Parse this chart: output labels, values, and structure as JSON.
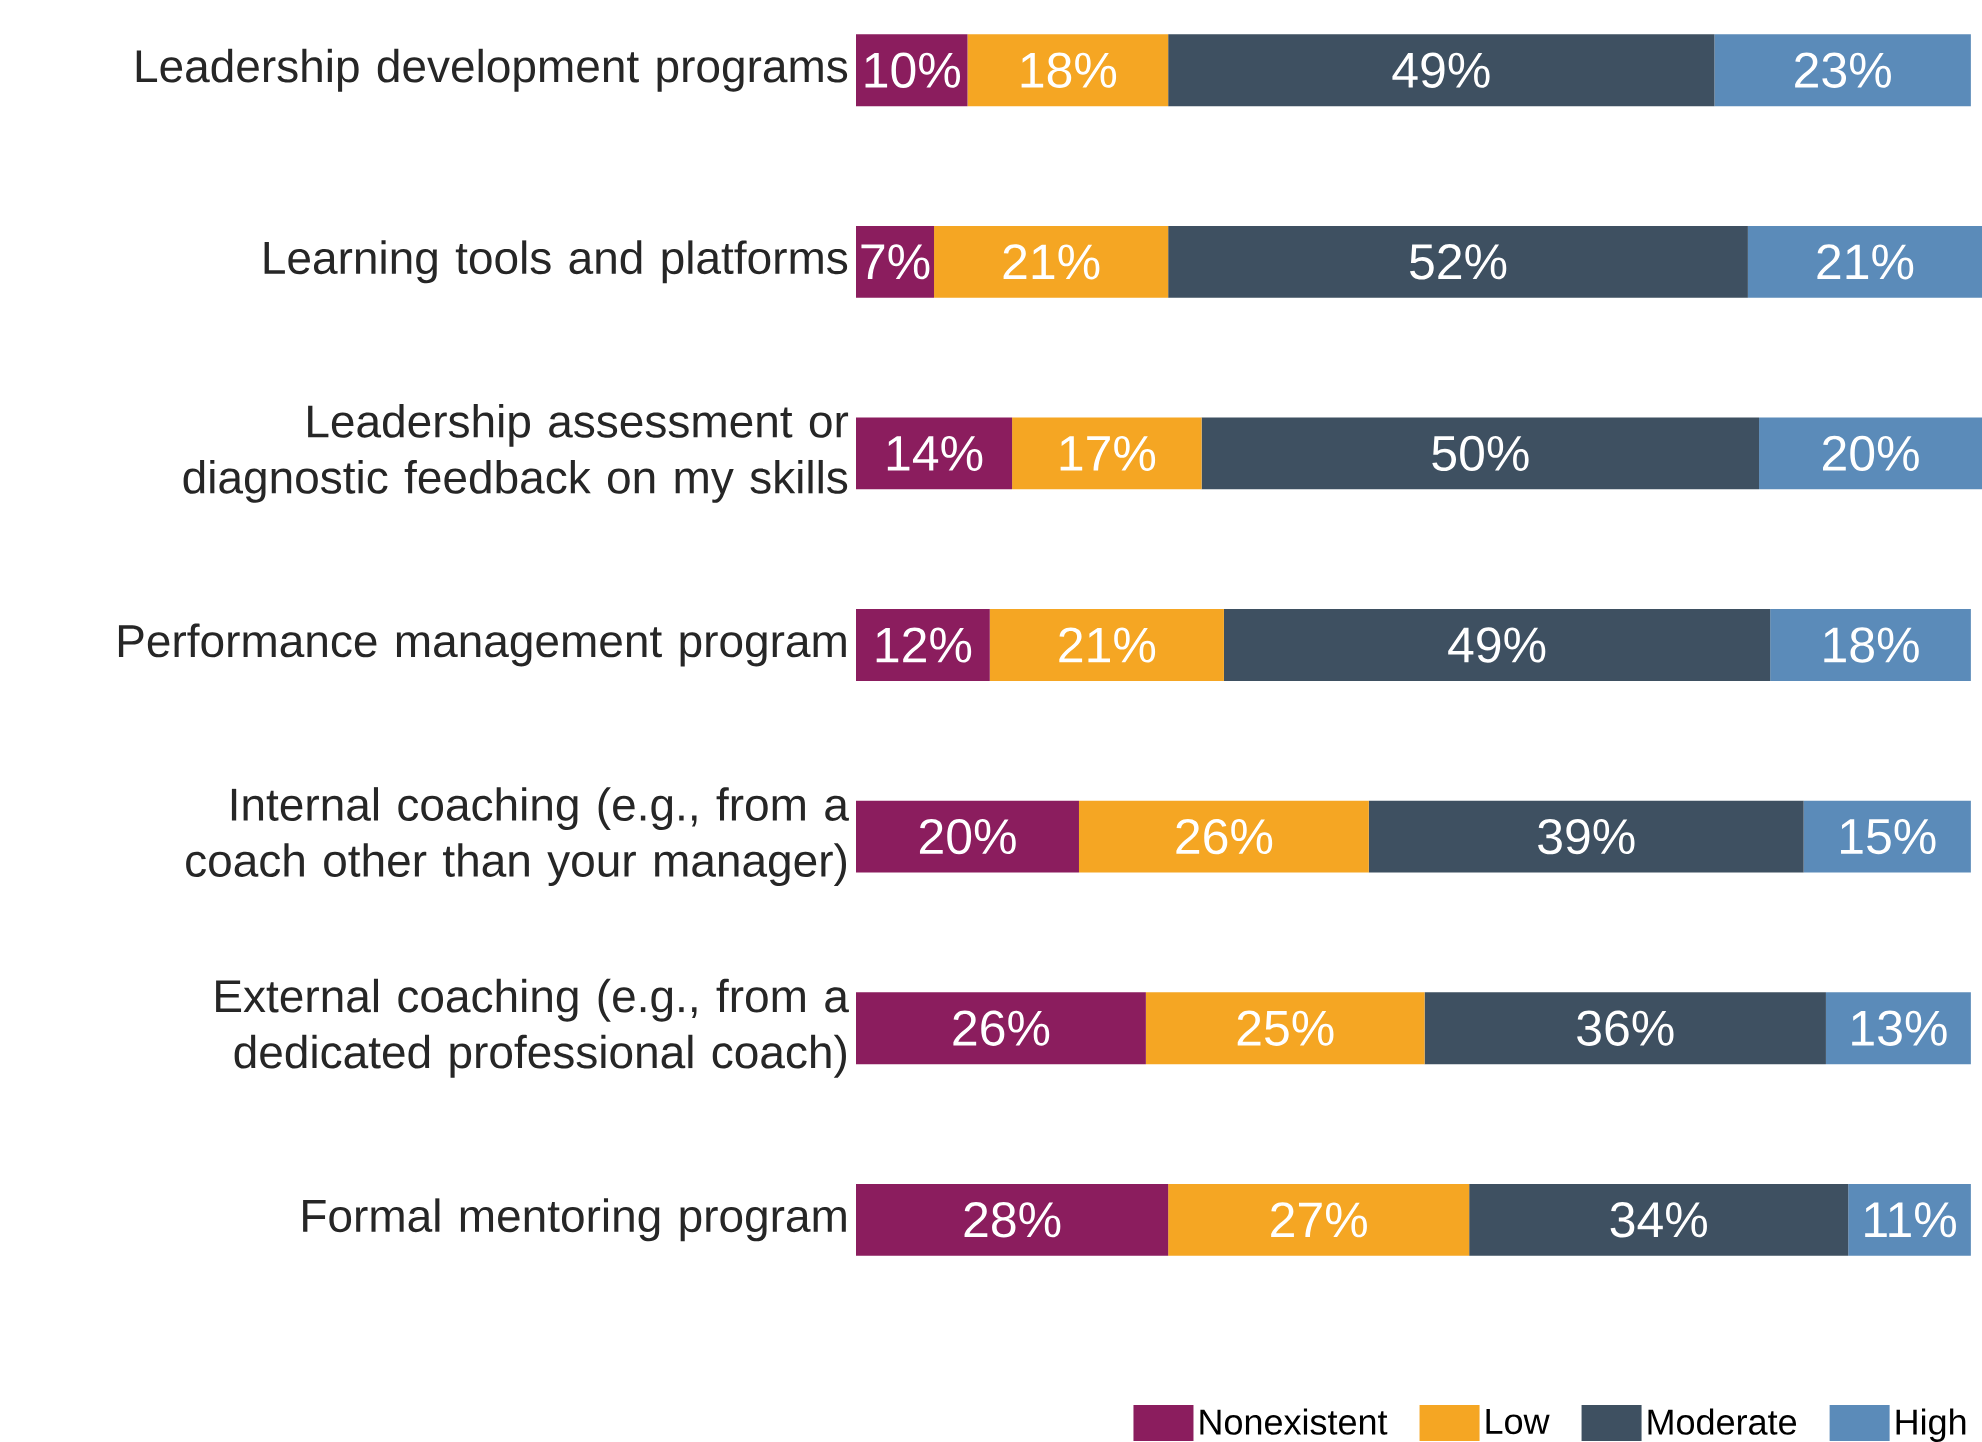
{
  "chart_data": {
    "type": "bar",
    "orientation": "horizontal",
    "stacked": true,
    "legend": "bottom right",
    "tick_labels": "y",
    "xlim": [
      0,
      101
    ],
    "categories": [
      "Leadership development programs",
      "Learning tools and platforms",
      "Leadership assessment or diagnostic feedback on my skills",
      "Performance management program",
      "Internal coaching (e.g., from a coach other than your manager)",
      "External coaching (e.g., from a dedicated professional coach)",
      "Formal mentoring program"
    ],
    "series": [
      {
        "name": "Nonexistent",
        "color": "#8b1d5e",
        "values": [
          10,
          7,
          14,
          12,
          20,
          26,
          28
        ],
        "value_labels": [
          "10%",
          "7%",
          "14%",
          "12%",
          "20%",
          "26%",
          "28%"
        ]
      },
      {
        "name": "Low",
        "color": "#f5a623",
        "values": [
          18,
          21,
          17,
          21,
          26,
          25,
          27
        ],
        "value_labels": [
          "18%",
          "21%",
          "17%",
          "21%",
          "26%",
          "25%",
          "27%"
        ]
      },
      {
        "name": "Moderate",
        "color": "#3e5061",
        "values": [
          49,
          52,
          50,
          49,
          39,
          36,
          34
        ],
        "value_labels": [
          "49%",
          "52%",
          "50%",
          "49%",
          "39%",
          "36%",
          "34%"
        ]
      },
      {
        "name": "High",
        "color": "#5b8bb9",
        "values": [
          23,
          21,
          20,
          18,
          15,
          13,
          11
        ],
        "value_labels": [
          "23%",
          "21%",
          "20%",
          "18%",
          "15%",
          "13%",
          "11%"
        ]
      }
    ]
  }
}
